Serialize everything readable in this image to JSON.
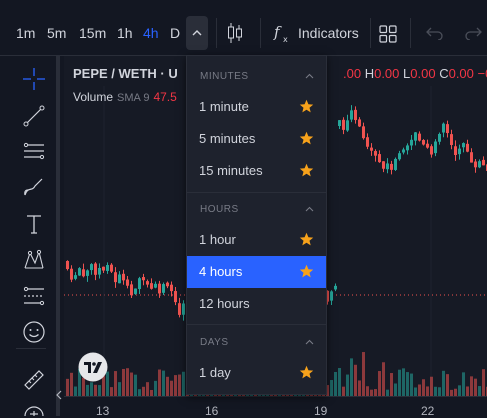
{
  "toolbar": {
    "timeframes": [
      {
        "label": "1m",
        "active": false
      },
      {
        "label": "5m",
        "active": false
      },
      {
        "label": "15m",
        "active": false
      },
      {
        "label": "1h",
        "active": false
      },
      {
        "label": "4h",
        "active": true
      },
      {
        "label": "D",
        "active": false
      }
    ],
    "indicators_label": "Indicators",
    "icons": [
      "chevron-up-icon",
      "candlestick-icon",
      "fx-icon",
      "layout-grid-icon",
      "undo-icon",
      "redo-icon"
    ]
  },
  "legend": {
    "title": "PEPE / WETH · U",
    "ohlc": [
      {
        "key": "",
        "value": ".00"
      },
      {
        "key": "H",
        "value": "0.00"
      },
      {
        "key": "L",
        "value": "0.00"
      },
      {
        "key": "C",
        "value": "0.00"
      },
      {
        "key": "",
        "value": "−0"
      }
    ],
    "volume_label": "Volume",
    "volume_sma": "SMA 9",
    "volume_value": "47.5"
  },
  "xaxis": {
    "ticks": [
      "13",
      "16",
      "19",
      "22"
    ]
  },
  "dropdown": {
    "sections": [
      {
        "title": "MINUTES",
        "items": [
          {
            "label": "1 minute",
            "favorite": true,
            "selected": false
          },
          {
            "label": "5 minutes",
            "favorite": true,
            "selected": false
          },
          {
            "label": "15 minutes",
            "favorite": true,
            "selected": false
          }
        ]
      },
      {
        "title": "HOURS",
        "items": [
          {
            "label": "1 hour",
            "favorite": true,
            "selected": false
          },
          {
            "label": "4 hours",
            "favorite": true,
            "selected": true
          },
          {
            "label": "12 hours",
            "favorite": false,
            "selected": false
          }
        ]
      },
      {
        "title": "DAYS",
        "items": [
          {
            "label": "1 day",
            "favorite": true,
            "selected": false
          }
        ]
      }
    ]
  },
  "colors": {
    "background": "#131722",
    "accent": "#2962ff",
    "up": "#26a69a",
    "down": "#ef5350",
    "star": "#f7a21b"
  }
}
